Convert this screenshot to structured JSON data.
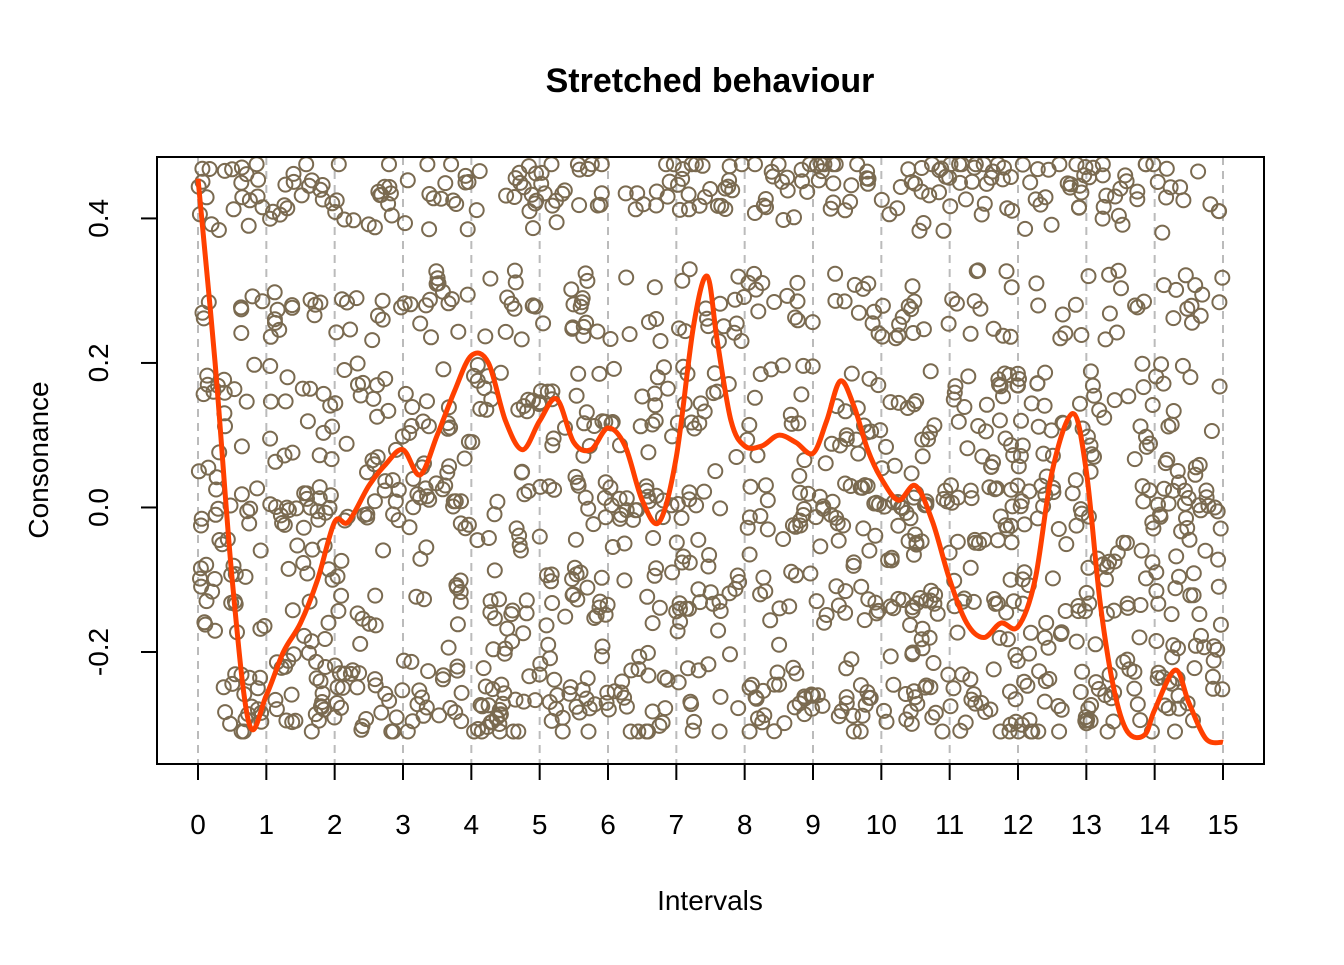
{
  "chart_data": {
    "type": "scatter",
    "title": "Stretched behaviour",
    "xlabel": "Intervals",
    "ylabel": "Consonance",
    "xlim": [
      -0.6,
      15.6
    ],
    "ylim": [
      -0.355,
      0.485
    ],
    "x_ticks": [
      0,
      1,
      2,
      3,
      4,
      5,
      6,
      7,
      8,
      9,
      10,
      11,
      12,
      13,
      14,
      15
    ],
    "x_tick_labels": [
      "0",
      "1",
      "2",
      "3",
      "4",
      "5",
      "6",
      "7",
      "8",
      "9",
      "10",
      "11",
      "12",
      "13",
      "14",
      "15"
    ],
    "y_ticks": [
      -0.2,
      0.0,
      0.2,
      0.4
    ],
    "y_tick_labels": [
      "-0.2",
      "0.0",
      "0.2",
      "0.4"
    ],
    "gridlines": "vertical dashed at integer intervals",
    "grid": true,
    "legend": "none",
    "colors": {
      "points": "#7a6a50",
      "smooth": "#ff4000",
      "grid": "#bbbbbb",
      "axis": "#000000"
    },
    "points_note_levels": [
      0.47,
      0.44,
      0.41,
      0.3,
      0.26,
      0.17,
      0.14,
      0.09,
      0.03,
      0.0,
      -0.02,
      -0.07,
      -0.12,
      -0.15,
      -0.21,
      -0.25,
      -0.27,
      -0.3
    ],
    "series": [
      {
        "kind": "points",
        "count": 1500,
        "x_range": [
          0,
          15
        ],
        "y_range": [
          -0.31,
          0.47
        ]
      },
      {
        "kind": "smooth-line",
        "x": [
          0,
          0.25,
          0.5,
          0.75,
          1.0,
          1.25,
          1.5,
          1.75,
          2.0,
          2.2,
          2.5,
          2.75,
          3.0,
          3.25,
          3.5,
          3.75,
          4.0,
          4.25,
          4.5,
          4.75,
          5.0,
          5.25,
          5.5,
          5.75,
          6.0,
          6.25,
          6.5,
          6.75,
          7.0,
          7.25,
          7.45,
          7.6,
          7.8,
          8.0,
          8.25,
          8.5,
          8.75,
          9.0,
          9.2,
          9.4,
          9.6,
          9.8,
          10.0,
          10.25,
          10.5,
          10.75,
          11.0,
          11.25,
          11.5,
          11.75,
          12.0,
          12.25,
          12.5,
          12.8,
          13.0,
          13.2,
          13.4,
          13.6,
          13.85,
          14.0,
          14.3,
          14.5,
          14.75,
          15.0
        ],
        "y": [
          0.455,
          0.2,
          -0.1,
          -0.3,
          -0.26,
          -0.2,
          -0.16,
          -0.1,
          -0.02,
          -0.02,
          0.03,
          0.06,
          0.08,
          0.045,
          0.1,
          0.16,
          0.21,
          0.2,
          0.12,
          0.08,
          0.12,
          0.15,
          0.09,
          0.08,
          0.11,
          0.085,
          0.01,
          -0.02,
          0.07,
          0.25,
          0.32,
          0.23,
          0.12,
          0.085,
          0.085,
          0.1,
          0.09,
          0.075,
          0.12,
          0.175,
          0.14,
          0.08,
          0.04,
          0.01,
          0.03,
          -0.02,
          -0.1,
          -0.16,
          -0.18,
          -0.16,
          -0.165,
          -0.1,
          0.05,
          0.13,
          0.05,
          -0.13,
          -0.25,
          -0.31,
          -0.315,
          -0.28,
          -0.225,
          -0.27,
          -0.32,
          -0.325
        ]
      }
    ]
  }
}
